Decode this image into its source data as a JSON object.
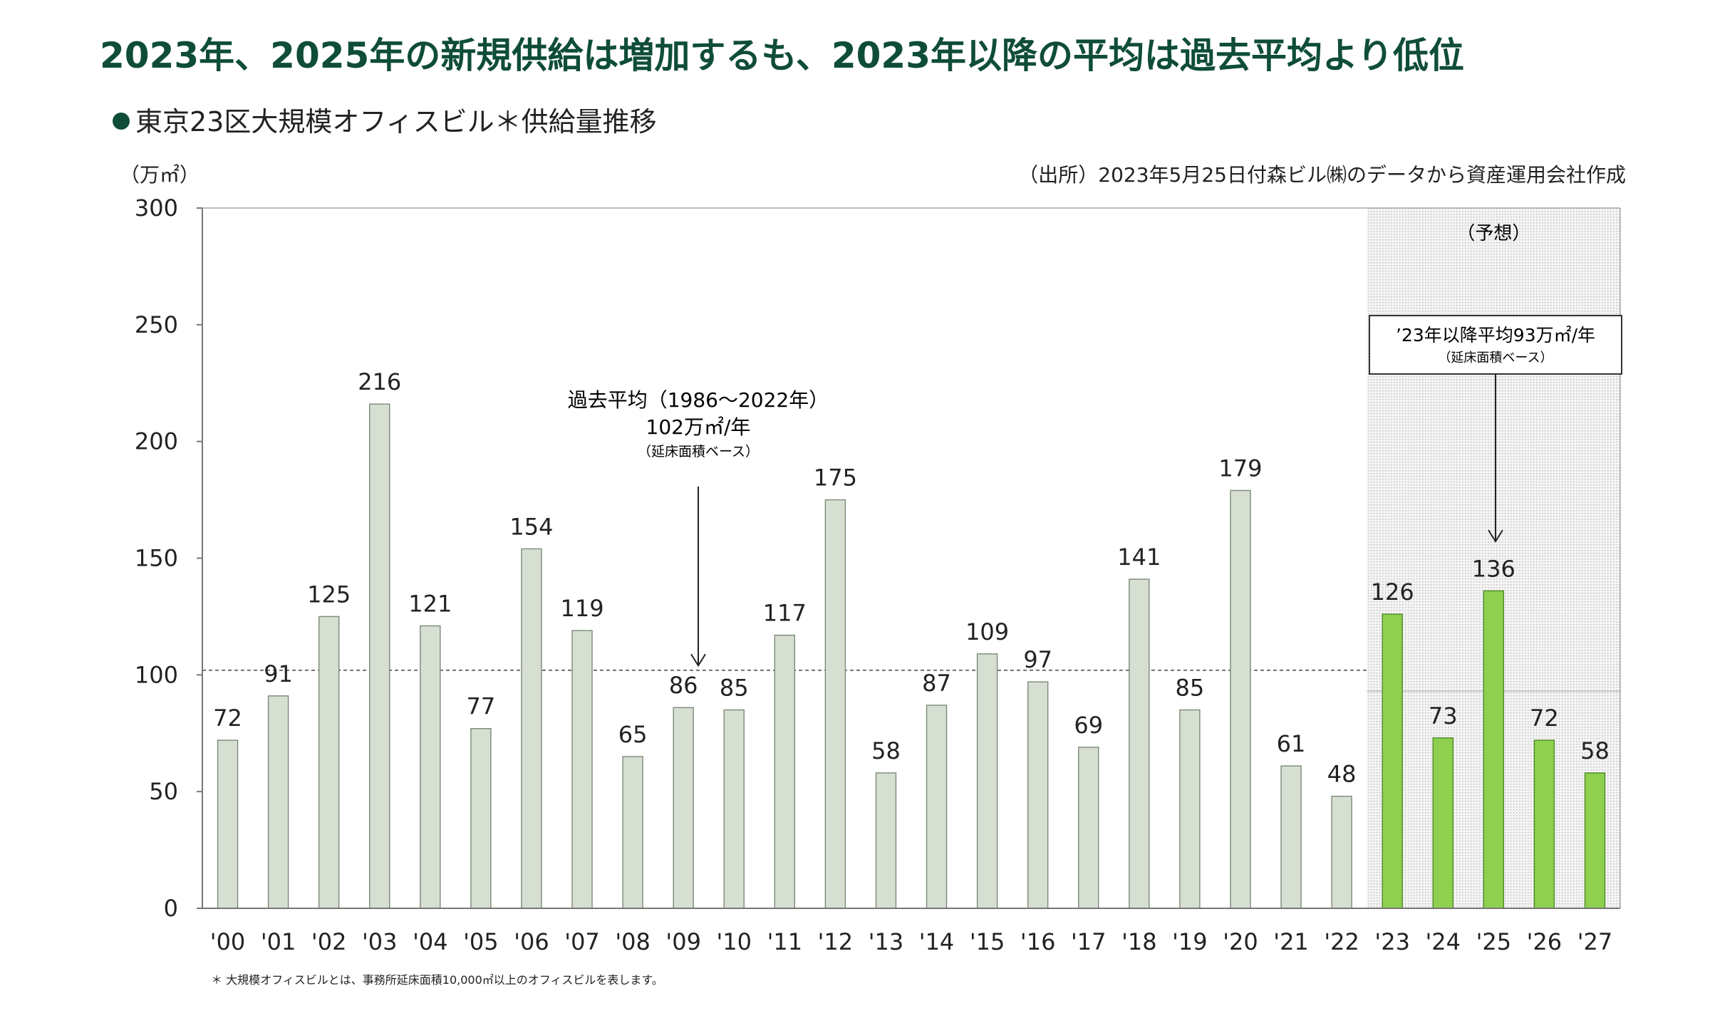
{
  "headline": "2023年、2025年の新規供給は増加するも、2023年以降の平均は過去平均より低位",
  "subtitle": "東京23区大規模オフィスビル＊供給量推移",
  "unit_label": "（万㎡）",
  "source_note": "（出所）2023年5月25日付森ビル㈱のデータから資産運用会社作成",
  "footnote": "＊ 大規模オフィスビルとは、事務所延床面積10,000㎡以上のオフィスビルを表します。",
  "forecast_label": "（予想）",
  "past_avg_annotation": {
    "line1": "過去平均（1986～2022年）",
    "line2": "102万㎡/年",
    "line3": "（延床面積ベース）"
  },
  "future_avg_annotation": {
    "line1": "’23年以降平均93万㎡/年",
    "line2": "（延床面積ベース）"
  },
  "colors": {
    "headline": "#0f4d36",
    "actual_bar": "#d6dfd2",
    "actual_bar_stroke": "#7c8a77",
    "forecast_bar": "#8fd14f",
    "forecast_bar_stroke": "#4c8a26",
    "forecast_bg": "#e6e6e6"
  },
  "chart_data": {
    "type": "bar",
    "categories": [
      "'00",
      "'01",
      "'02",
      "'03",
      "'04",
      "'05",
      "'06",
      "'07",
      "'08",
      "'09",
      "'10",
      "'11",
      "'12",
      "'13",
      "'14",
      "'15",
      "'16",
      "'17",
      "'18",
      "'19",
      "'20",
      "'21",
      "'22",
      "'23",
      "'24",
      "'25",
      "'26",
      "'27"
    ],
    "values": [
      72,
      91,
      125,
      216,
      121,
      77,
      154,
      119,
      65,
      86,
      85,
      117,
      175,
      58,
      87,
      109,
      97,
      69,
      141,
      85,
      179,
      61,
      48,
      126,
      73,
      136,
      72,
      58
    ],
    "forecast_from_index": 23,
    "ylim": [
      0,
      300
    ],
    "yticks": [
      0,
      50,
      100,
      150,
      200,
      250,
      300
    ],
    "reference_lines": [
      {
        "value": 102,
        "span": "actual"
      },
      {
        "value": 93,
        "span": "forecast"
      }
    ],
    "grid": false
  }
}
